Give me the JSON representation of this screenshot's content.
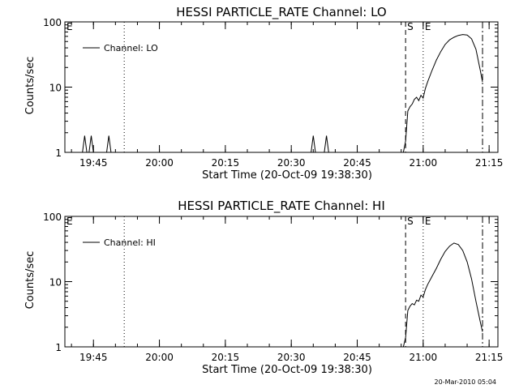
{
  "chart_data": [
    {
      "type": "line",
      "title": "HESSI PARTICLE_RATE Channel: LO",
      "xlabel": "Start Time (20-Oct-09 19:38:30)",
      "ylabel": "Counts/sec",
      "yscale": "log",
      "ylim": [
        1,
        100
      ],
      "xlim": [
        "19:38:30",
        "21:17:00"
      ],
      "yticks": [
        "1",
        "10",
        "100"
      ],
      "xticks": [
        "19:45",
        "20:00",
        "20:15",
        "20:30",
        "20:45",
        "21:00",
        "21:15"
      ],
      "legend": {
        "position": "upper-left",
        "entries": [
          "Channel: LO"
        ]
      },
      "markers": [
        {
          "label": "E",
          "time": "19:38:30",
          "style": "none"
        },
        {
          "label": "",
          "time": "19:52:00",
          "style": "dotted"
        },
        {
          "label": "S",
          "time": "20:56:00",
          "style": "dashed"
        },
        {
          "label": "E",
          "time": "21:00:00",
          "style": "dotted"
        },
        {
          "label": "",
          "time": "21:13:30",
          "style": "dashdot"
        }
      ],
      "series": [
        {
          "name": "Channel: LO",
          "points": [
            [
              "19:38:30",
              1
            ],
            [
              "19:42:30",
              1
            ],
            [
              "19:43:00",
              1.8
            ],
            [
              "19:43:30",
              1
            ],
            [
              "19:44:00",
              1
            ],
            [
              "19:44:30",
              1.8
            ],
            [
              "19:45:00",
              1
            ],
            [
              "19:48:00",
              1
            ],
            [
              "19:48:30",
              1.8
            ],
            [
              "19:49:00",
              1
            ],
            [
              "20:34:30",
              1
            ],
            [
              "20:35:00",
              1.8
            ],
            [
              "20:35:30",
              1
            ],
            [
              "20:37:30",
              1
            ],
            [
              "20:38:00",
              1.8
            ],
            [
              "20:38:30",
              1
            ],
            [
              "20:55:30",
              1
            ],
            [
              "20:56:00",
              1.5
            ],
            [
              "20:56:30",
              4.3
            ],
            [
              "20:57:00",
              5
            ],
            [
              "20:57:30",
              5.5
            ],
            [
              "20:58:00",
              6.5
            ],
            [
              "20:58:30",
              7
            ],
            [
              "20:59:00",
              6.2
            ],
            [
              "20:59:30",
              7.5
            ],
            [
              "21:00:00",
              6.8
            ],
            [
              "21:00:30",
              9.5
            ],
            [
              "21:01:00",
              12
            ],
            [
              "21:02:00",
              18
            ],
            [
              "21:03:00",
              26
            ],
            [
              "21:04:00",
              35
            ],
            [
              "21:05:00",
              45
            ],
            [
              "21:06:00",
              53
            ],
            [
              "21:07:00",
              58
            ],
            [
              "21:08:00",
              62
            ],
            [
              "21:09:00",
              64
            ],
            [
              "21:10:00",
              63
            ],
            [
              "21:11:00",
              55
            ],
            [
              "21:12:00",
              38
            ],
            [
              "21:13:00",
              18
            ],
            [
              "21:13:30",
              12
            ]
          ]
        }
      ]
    },
    {
      "type": "line",
      "title": "HESSI PARTICLE_RATE Channel: HI",
      "xlabel": "Start Time (20-Oct-09 19:38:30)",
      "ylabel": "Counts/sec",
      "yscale": "log",
      "ylim": [
        1,
        100
      ],
      "xlim": [
        "19:38:30",
        "21:17:00"
      ],
      "yticks": [
        "1",
        "10",
        "100"
      ],
      "xticks": [
        "19:45",
        "20:00",
        "20:15",
        "20:30",
        "20:45",
        "21:00",
        "21:15"
      ],
      "legend": {
        "position": "upper-left",
        "entries": [
          "Channel: HI"
        ]
      },
      "markers": [
        {
          "label": "E",
          "time": "19:38:30",
          "style": "none"
        },
        {
          "label": "",
          "time": "19:52:00",
          "style": "dotted"
        },
        {
          "label": "S",
          "time": "20:56:00",
          "style": "dashed"
        },
        {
          "label": "E",
          "time": "21:00:00",
          "style": "dotted"
        },
        {
          "label": "",
          "time": "21:13:30",
          "style": "dashdot"
        }
      ],
      "series": [
        {
          "name": "Channel: HI",
          "points": [
            [
              "19:38:30",
              1
            ],
            [
              "20:55:30",
              1
            ],
            [
              "20:56:00",
              1.4
            ],
            [
              "20:56:30",
              3.6
            ],
            [
              "20:57:00",
              4.2
            ],
            [
              "20:57:30",
              4.6
            ],
            [
              "20:58:00",
              4.4
            ],
            [
              "20:58:30",
              5.2
            ],
            [
              "20:59:00",
              5.0
            ],
            [
              "20:59:30",
              6.2
            ],
            [
              "21:00:00",
              5.8
            ],
            [
              "21:00:30",
              7.5
            ],
            [
              "21:01:00",
              9
            ],
            [
              "21:02:00",
              12
            ],
            [
              "21:03:00",
              16
            ],
            [
              "21:04:00",
              22
            ],
            [
              "21:05:00",
              29
            ],
            [
              "21:06:00",
              35
            ],
            [
              "21:07:00",
              39
            ],
            [
              "21:08:00",
              37
            ],
            [
              "21:09:00",
              30
            ],
            [
              "21:10:00",
              20
            ],
            [
              "21:11:00",
              11
            ],
            [
              "21:12:00",
              5
            ],
            [
              "21:13:00",
              2.4
            ],
            [
              "21:13:30",
              1.7
            ]
          ]
        }
      ]
    }
  ],
  "footer": {
    "timestamp": "20-Mar-2010 05:04"
  }
}
